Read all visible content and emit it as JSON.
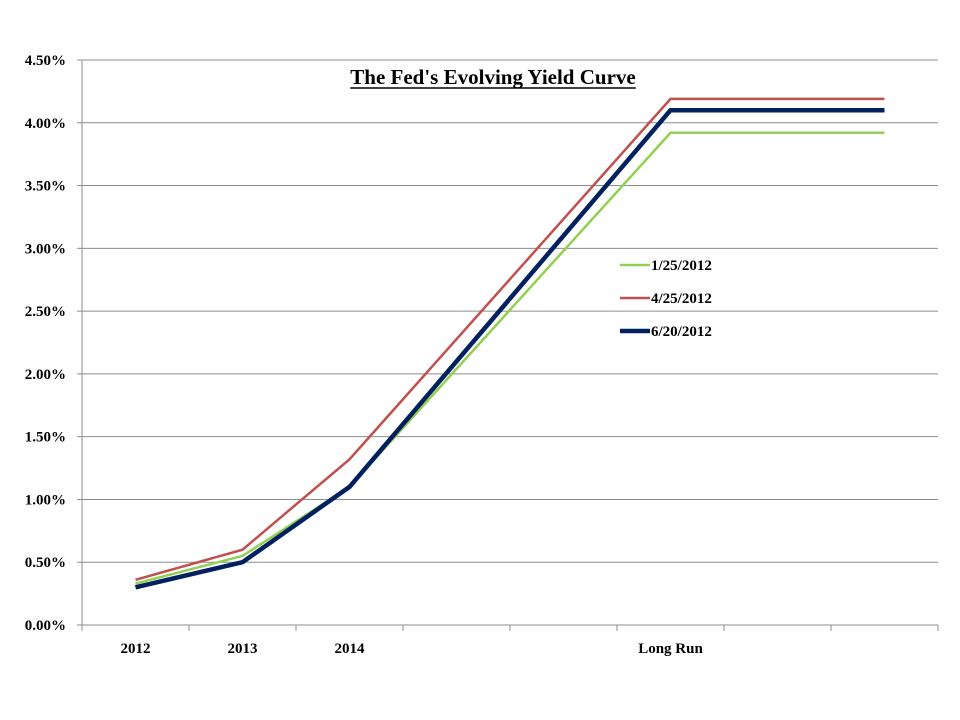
{
  "chart_data": {
    "type": "line",
    "title": "The Fed's Evolving Yield Curve",
    "xlabel": "",
    "ylabel": "",
    "categories": [
      "2012",
      "2013",
      "2014",
      "",
      "",
      "Long Run",
      "",
      ""
    ],
    "ylim": [
      0,
      4.5
    ],
    "y_ticks": [
      "0.00%",
      "0.50%",
      "1.00%",
      "1.50%",
      "2.00%",
      "2.50%",
      "3.00%",
      "3.50%",
      "4.00%",
      "4.50%"
    ],
    "grid": true,
    "legend_position": "right",
    "series": [
      {
        "name": "1/25/2012",
        "color": "#92D050",
        "values": [
          0.33,
          0.55,
          1.1,
          null,
          null,
          3.92,
          null,
          3.92
        ]
      },
      {
        "name": "4/25/2012",
        "color": "#C0504D",
        "values": [
          0.36,
          0.6,
          1.32,
          null,
          null,
          4.19,
          null,
          4.19
        ]
      },
      {
        "name": "6/20/2012",
        "color": "#002060",
        "values": [
          0.3,
          0.5,
          1.1,
          null,
          null,
          4.1,
          null,
          4.1
        ]
      }
    ]
  }
}
